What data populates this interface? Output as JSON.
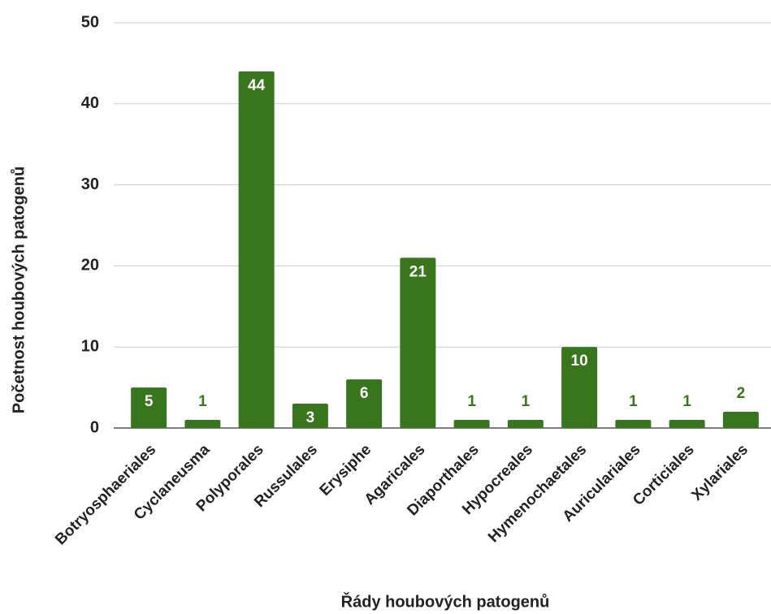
{
  "chart_data": {
    "type": "bar",
    "x_label": "Řády houbových patogenů",
    "y_label": "Početnost houbových patogenů",
    "categories": [
      "Botryosphaeriales",
      "Cyclaneusma",
      "Polyporales",
      "Russulales",
      "Erysiphe",
      "Agaricales",
      "Diaporthales",
      "Hypocreales",
      "Hymenochaetales",
      "Auriculariales",
      "Corticiales",
      "Xylariales"
    ],
    "values": [
      5,
      1,
      44,
      3,
      6,
      21,
      1,
      1,
      10,
      1,
      1,
      2
    ],
    "color": "#38761d",
    "ylim": [
      0,
      50
    ],
    "yticks": [
      0,
      10,
      20,
      30,
      40,
      50
    ],
    "grid": true
  }
}
